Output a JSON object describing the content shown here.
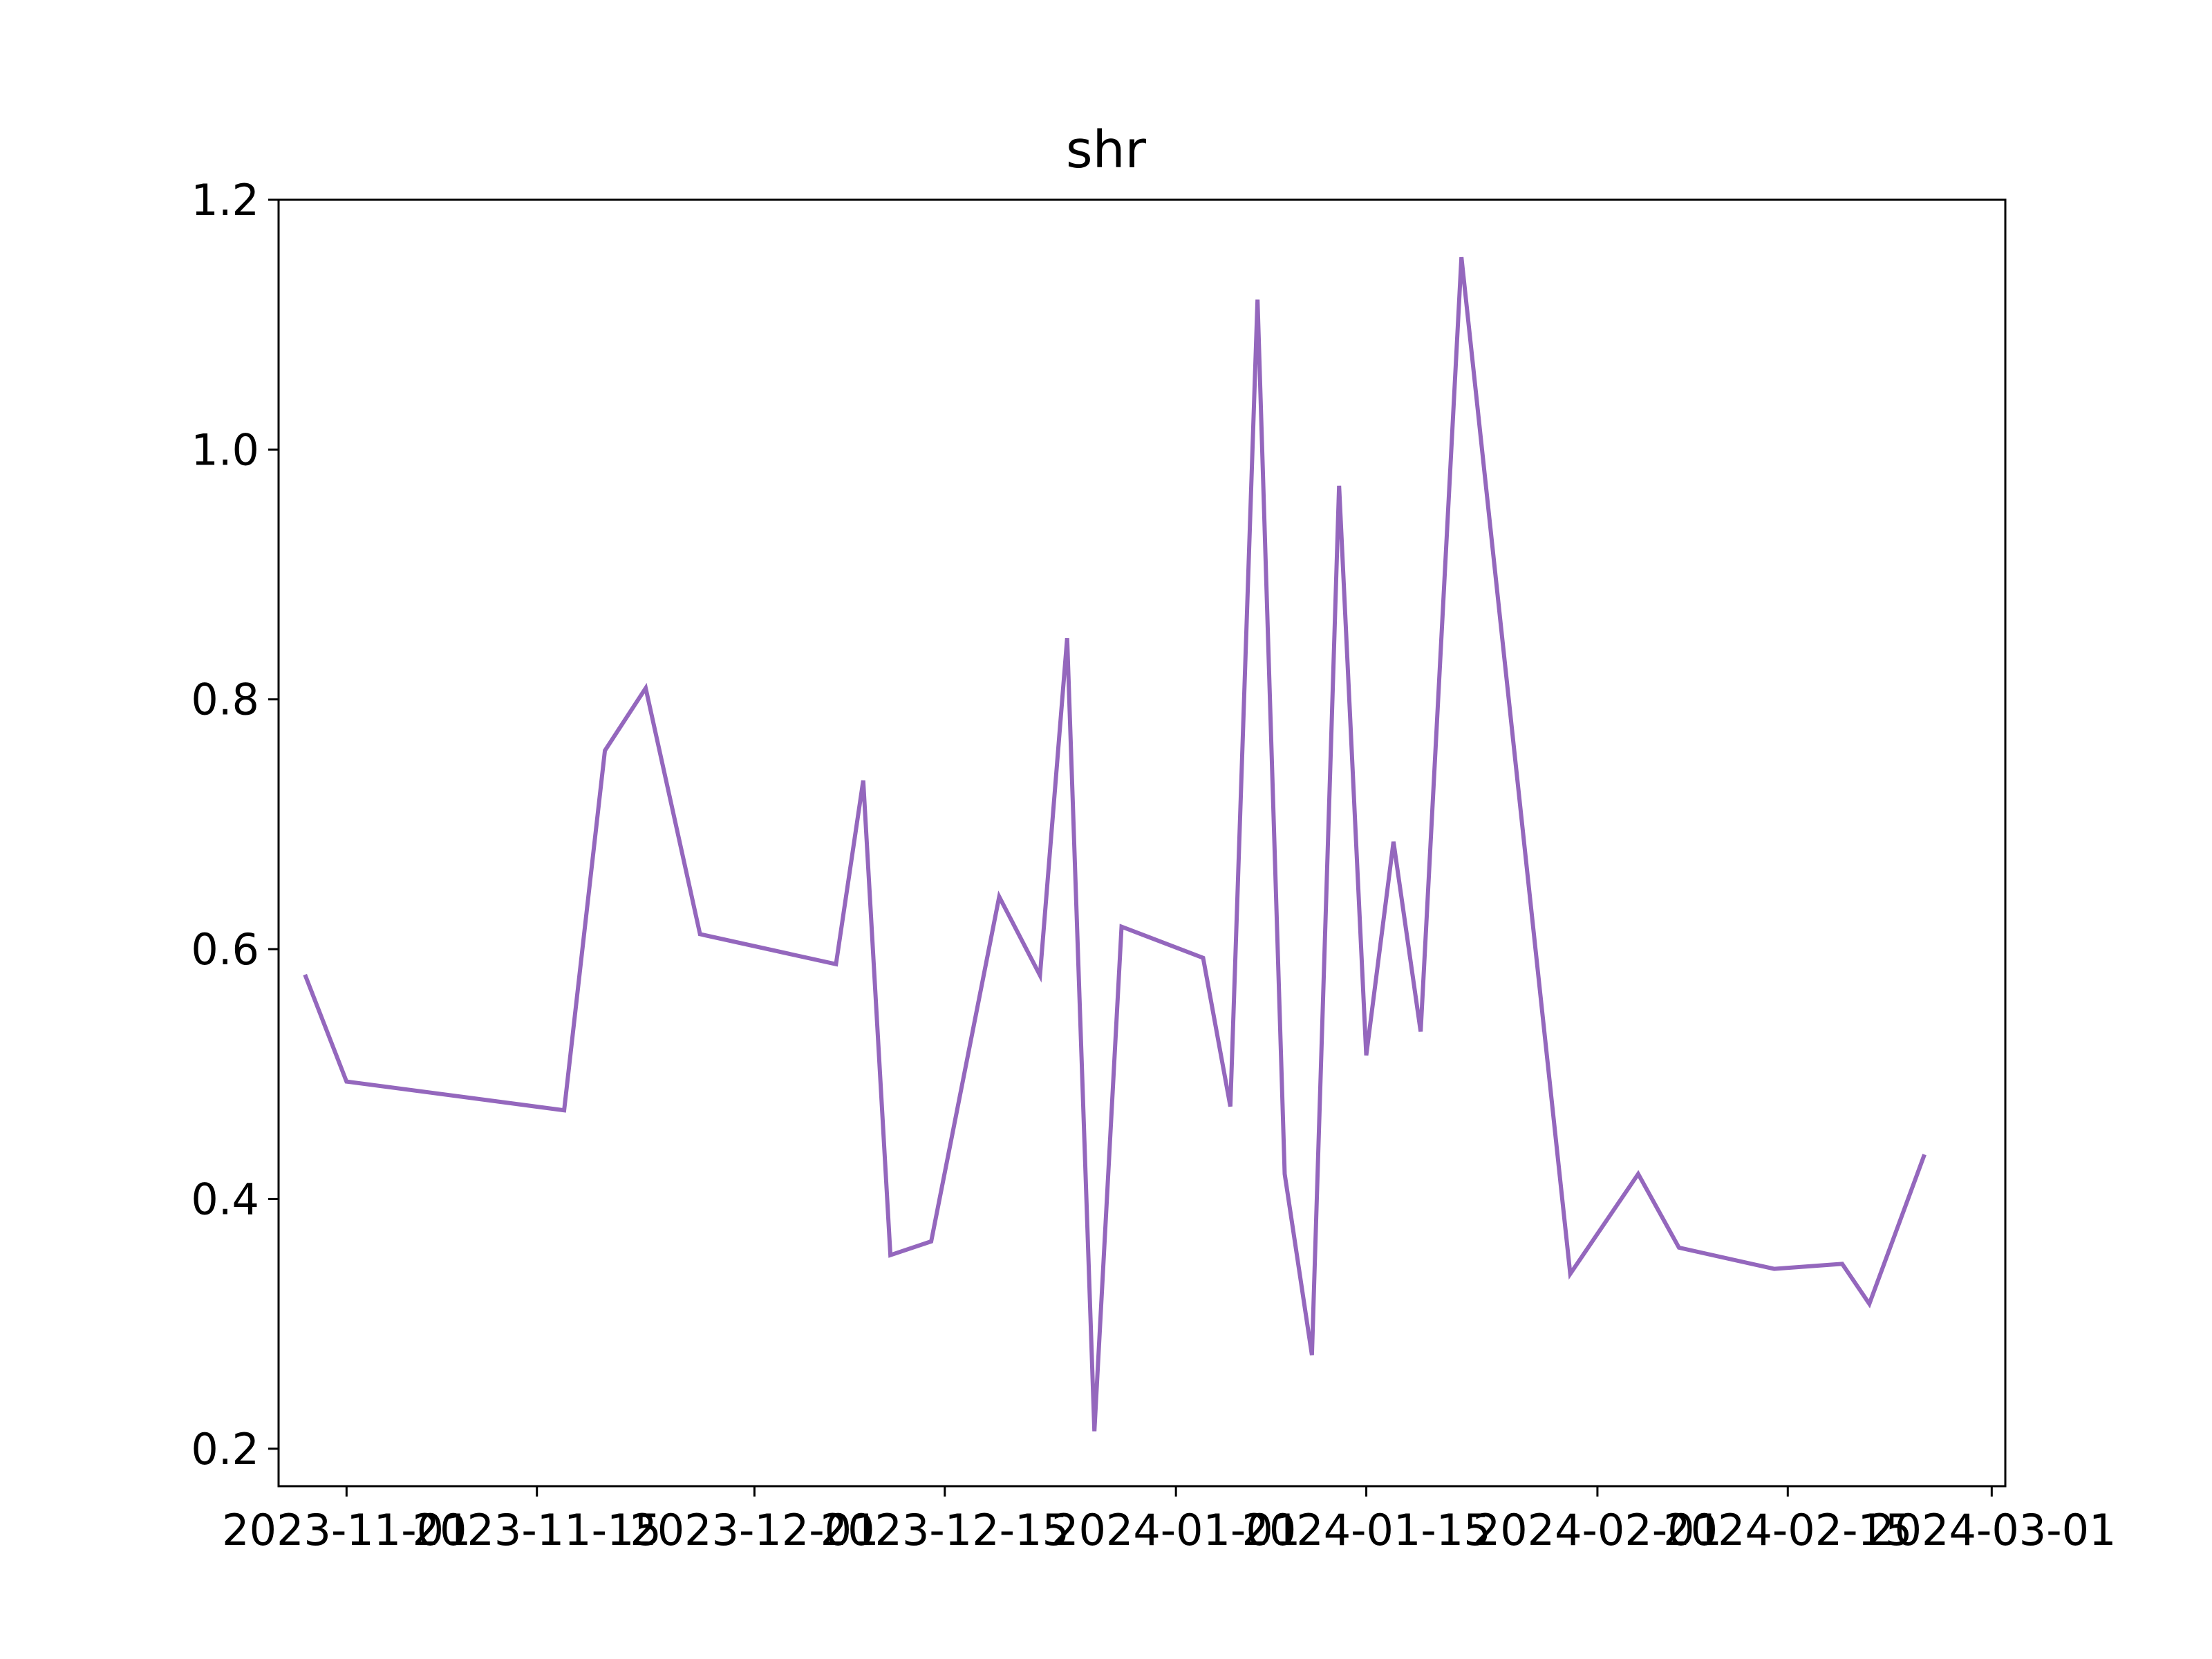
{
  "chart_data": {
    "type": "line",
    "title": "shr",
    "xlabel": "",
    "ylabel": "",
    "x_axis_type": "date",
    "xlim": [
      "2023-10-27",
      "2024-03-02"
    ],
    "ylim": [
      0.17,
      1.2
    ],
    "x_ticks": [
      "2023-11-01",
      "2023-11-15",
      "2023-12-01",
      "2023-12-15",
      "2024-01-01",
      "2024-01-15",
      "2024-02-01",
      "2024-02-15",
      "2024-03-01"
    ],
    "y_ticks": [
      0.2,
      0.4,
      0.6,
      0.8,
      1.0,
      1.2
    ],
    "y_tick_labels": [
      "0.2",
      "0.4",
      "0.6",
      "0.8",
      "1.0",
      "1.2"
    ],
    "grid": false,
    "legend": "none",
    "series": [
      {
        "color": "#9467bd",
        "x": [
          "2023-10-29",
          "2023-11-01",
          "2023-11-17",
          "2023-11-20",
          "2023-11-23",
          "2023-11-27",
          "2023-12-07",
          "2023-12-09",
          "2023-12-11",
          "2023-12-14",
          "2023-12-19",
          "2023-12-22",
          "2023-12-24",
          "2023-12-26",
          "2023-12-28",
          "2024-01-03",
          "2024-01-05",
          "2024-01-07",
          "2024-01-09",
          "2024-01-11",
          "2024-01-13",
          "2024-01-15",
          "2024-01-17",
          "2024-01-19",
          "2024-01-22",
          "2024-01-30",
          "2024-02-04",
          "2024-02-07",
          "2024-02-14",
          "2024-02-19",
          "2024-02-21",
          "2024-02-25"
        ],
        "y": [
          0.578,
          0.494,
          0.471,
          0.759,
          0.809,
          0.612,
          0.588,
          0.735,
          0.355,
          0.366,
          0.642,
          0.579,
          0.849,
          0.214,
          0.618,
          0.593,
          0.474,
          1.12,
          0.42,
          0.275,
          0.971,
          0.515,
          0.686,
          0.534,
          1.154,
          0.34,
          0.42,
          0.361,
          0.344,
          0.348,
          0.316,
          0.434
        ]
      }
    ]
  }
}
